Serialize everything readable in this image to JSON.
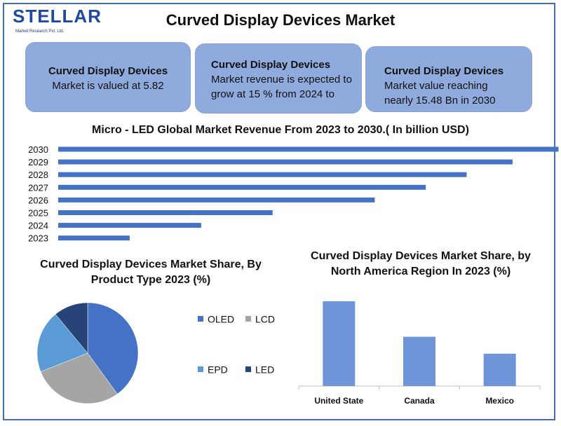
{
  "brand": {
    "name": "STELLAR",
    "tagline": "Market Research Pvt. Ltd."
  },
  "page": {
    "title": "Curved Display Devices Market"
  },
  "cards": [
    {
      "title": "Curved Display Devices",
      "text": "Market is valued at 5.82"
    },
    {
      "title": "Curved Display Devices",
      "text": "Market revenue is expected to grow at 15 % from 2024 to"
    },
    {
      "title": "Curved Display Devices",
      "text": "Market value reaching nearly 15.48 Bn in 2030"
    }
  ],
  "colors": {
    "accent": "#4472c4",
    "card": "#8faadc",
    "frame": "#4a6aa8",
    "column": "#7094d8"
  },
  "chart_data": [
    {
      "type": "bar",
      "orientation": "horizontal",
      "title": "Micro - LED Global Market Revenue From 2023 to 2030.( In billion USD)",
      "categories": [
        "2023",
        "2024",
        "2025",
        "2026",
        "2027",
        "2028",
        "2029",
        "2030"
      ],
      "values": [
        1.4,
        2.8,
        4.2,
        6.2,
        7.2,
        8.0,
        8.9,
        9.8
      ],
      "xlim": [
        0,
        10
      ],
      "grid": false,
      "color": "#4472c4"
    },
    {
      "type": "pie",
      "title": "Curved Display Devices Market Share, By Product Type 2023 (%)",
      "labels": [
        "OLED",
        "LCD",
        "EPD",
        "LED"
      ],
      "values": [
        40,
        29,
        20,
        11
      ],
      "colors": [
        "#4472c4",
        "#a5a5a5",
        "#5b9bd5",
        "#264478"
      ],
      "legend": "right"
    },
    {
      "type": "bar",
      "title": "Curved Display Devices Market Share, by North America Region In 2023 (%)",
      "categories": [
        "United State",
        "Canada",
        "Mexico"
      ],
      "values": [
        55,
        32,
        21
      ],
      "ylim": [
        0,
        60
      ],
      "color": "#7094d8"
    }
  ]
}
